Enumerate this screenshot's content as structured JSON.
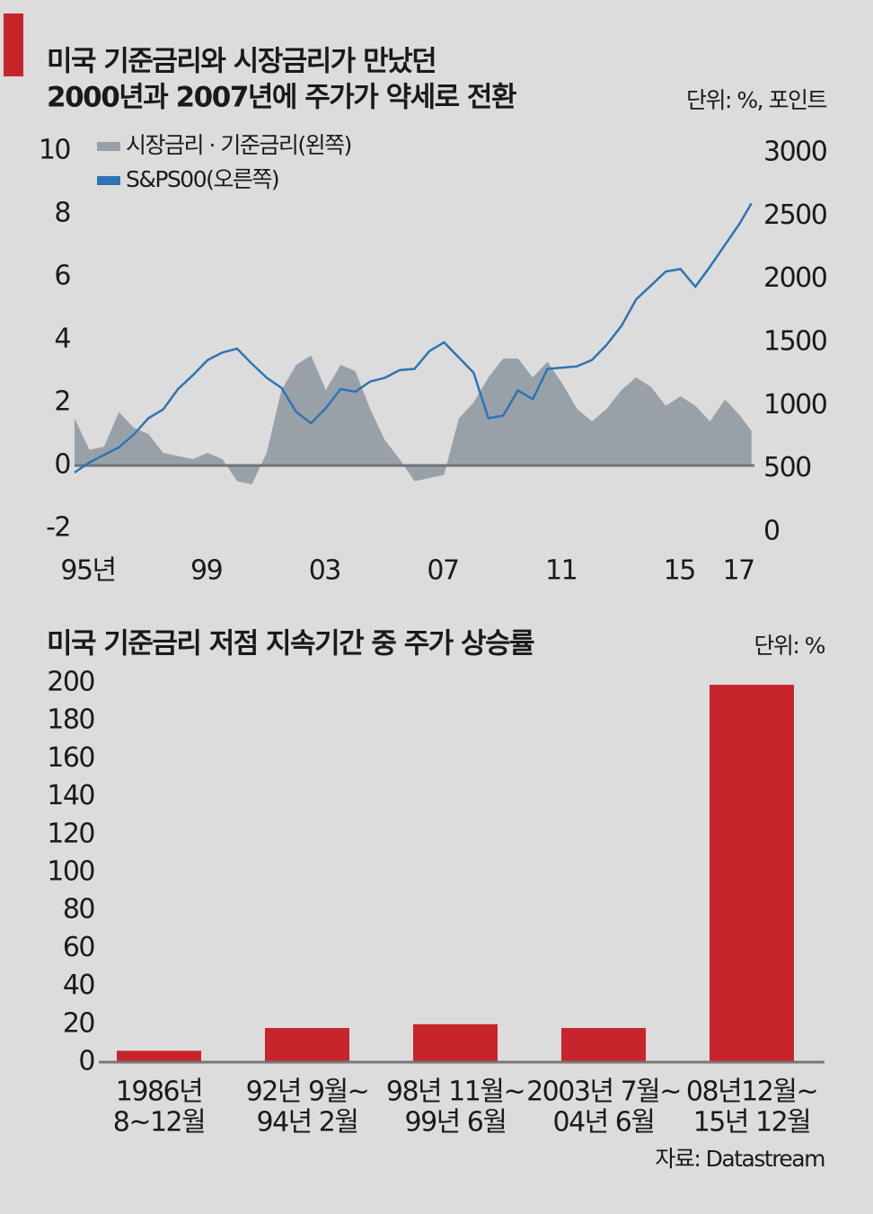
{
  "chart_data": [
    {
      "type": "line",
      "title": [
        "미국 기준금리와 시장금리가 만났던",
        "2000년과 2007년에 주가가 약세로 전환"
      ],
      "unit": "단위: %, 포인트",
      "x": [
        1995,
        1995.5,
        1996,
        1996.5,
        1997,
        1997.5,
        1998,
        1998.5,
        1999,
        1999.5,
        2000,
        2000.5,
        2001,
        2001.5,
        2002,
        2002.5,
        2003,
        2003.5,
        2004,
        2004.5,
        2005,
        2005.5,
        2006,
        2006.5,
        2007,
        2007.5,
        2008,
        2008.5,
        2009,
        2009.5,
        2010,
        2010.5,
        2011,
        2011.5,
        2012,
        2012.5,
        2013,
        2013.5,
        2014,
        2014.5,
        2015,
        2015.5,
        2016,
        2016.5,
        2017,
        2017.5,
        2017.9
      ],
      "xlim": [
        1995,
        2018
      ],
      "xticks": [
        {
          "value": 1995,
          "label": "95년"
        },
        {
          "value": 1999,
          "label": "99"
        },
        {
          "value": 2003,
          "label": "03"
        },
        {
          "value": 2007,
          "label": "07"
        },
        {
          "value": 2011,
          "label": "11"
        },
        {
          "value": 2015,
          "label": "15"
        },
        {
          "value": 2017,
          "label": "17"
        }
      ],
      "ylim": [
        -2,
        10
      ],
      "yticks": [
        -2,
        0,
        2,
        4,
        6,
        8,
        10
      ],
      "y2lim": [
        0,
        3000
      ],
      "y2ticks": [
        0,
        500,
        1000,
        1500,
        2000,
        2500,
        3000
      ],
      "series": [
        {
          "name": "시장금리 · 기준금리(왼쪽)",
          "color": "#98a1a7",
          "kind": "area",
          "values": [
            1.5,
            0.5,
            0.6,
            1.7,
            1.2,
            1.0,
            0.4,
            0.3,
            0.2,
            0.4,
            0.2,
            -0.5,
            -0.6,
            0.4,
            2.4,
            3.2,
            3.5,
            2.4,
            3.2,
            3.0,
            1.8,
            0.8,
            0.2,
            -0.5,
            -0.4,
            -0.3,
            1.5,
            2.0,
            2.8,
            3.4,
            3.4,
            2.8,
            3.3,
            2.6,
            1.8,
            1.4,
            1.8,
            2.4,
            2.8,
            2.5,
            1.9,
            2.2,
            1.9,
            1.4,
            2.1,
            1.6,
            1.1
          ]
        },
        {
          "name": "S&PS00(오른쪽)",
          "color": "#2e74b5",
          "kind": "line",
          "axis": "y2",
          "values": [
            470,
            550,
            610,
            670,
            770,
            900,
            970,
            1130,
            1240,
            1360,
            1420,
            1450,
            1330,
            1220,
            1140,
            950,
            860,
            980,
            1130,
            1110,
            1190,
            1220,
            1280,
            1290,
            1430,
            1500,
            1380,
            1260,
            900,
            920,
            1120,
            1050,
            1290,
            1300,
            1310,
            1360,
            1480,
            1630,
            1840,
            1950,
            2060,
            2080,
            1940,
            2100,
            2270,
            2440,
            2600
          ]
        }
      ]
    },
    {
      "type": "bar",
      "title": "미국 기준금리 저점 지속기간 중 주가 상승률",
      "unit": "단위: %",
      "categories": [
        [
          "1986년",
          "8~12월"
        ],
        [
          "92년 9월~",
          "94년 2월"
        ],
        [
          "98년 11월~",
          "99년 6월"
        ],
        [
          "2003년 7월~",
          "04년 6월"
        ],
        [
          "08년12월~",
          "15년 12월"
        ]
      ],
      "values": [
        6,
        18,
        20,
        18,
        199
      ],
      "color": "#c8242c",
      "ylim": [
        0,
        200
      ],
      "yticks": [
        0,
        20,
        40,
        60,
        80,
        100,
        120,
        140,
        160,
        180,
        200
      ],
      "source": "자료: Datastream"
    }
  ]
}
